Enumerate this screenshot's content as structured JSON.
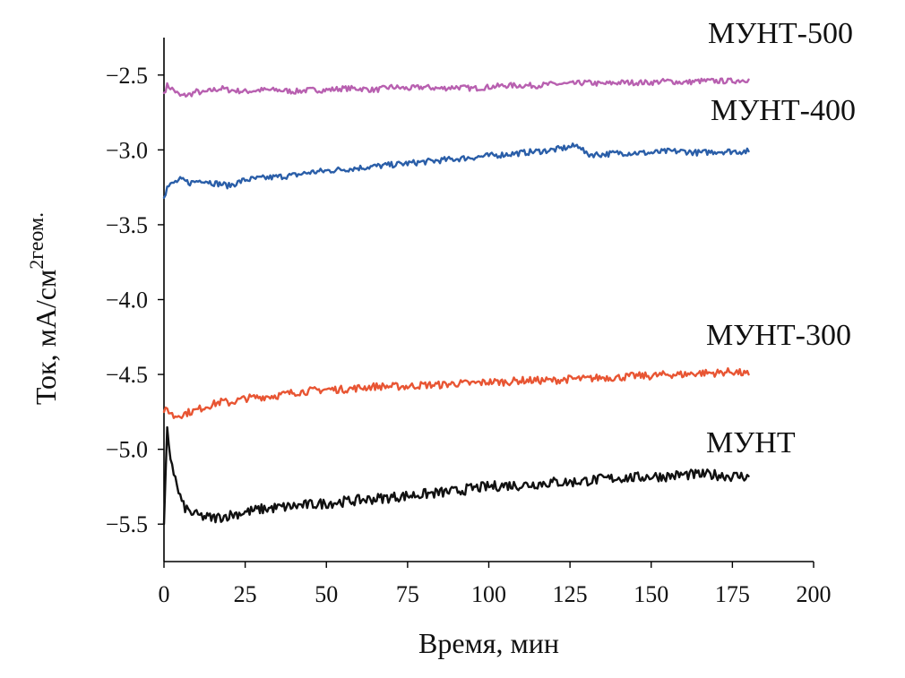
{
  "chart_data": {
    "type": "line",
    "xlabel": "Время, мин",
    "ylabel_main": "Ток, мА/см",
    "ylabel_sup": "2",
    "ylabel_sub": "геом.",
    "xlim": [
      0,
      200
    ],
    "ylim": [
      -5.75,
      -2.25
    ],
    "x_ticks": [
      0,
      25,
      50,
      75,
      100,
      125,
      150,
      175,
      200
    ],
    "y_ticks": [
      -2.5,
      -3.0,
      -3.5,
      -4.0,
      -4.5,
      -5.0,
      -5.5
    ],
    "grid": false,
    "series": [
      {
        "name": "МУНТ-500",
        "color": "#b860b0",
        "x": [
          0,
          1,
          3,
          5,
          8,
          10,
          12,
          15,
          18,
          20,
          25,
          30,
          35,
          40,
          45,
          50,
          55,
          60,
          65,
          70,
          75,
          80,
          85,
          90,
          95,
          100,
          105,
          110,
          115,
          120,
          125,
          130,
          135,
          140,
          145,
          150,
          155,
          160,
          165,
          170,
          175,
          180
        ],
        "values": [
          -2.62,
          -2.57,
          -2.6,
          -2.64,
          -2.63,
          -2.61,
          -2.62,
          -2.6,
          -2.59,
          -2.6,
          -2.61,
          -2.6,
          -2.6,
          -2.61,
          -2.6,
          -2.6,
          -2.59,
          -2.59,
          -2.6,
          -2.58,
          -2.59,
          -2.58,
          -2.59,
          -2.58,
          -2.59,
          -2.58,
          -2.57,
          -2.57,
          -2.57,
          -2.56,
          -2.56,
          -2.55,
          -2.56,
          -2.55,
          -2.55,
          -2.55,
          -2.54,
          -2.55,
          -2.54,
          -2.54,
          -2.54,
          -2.53
        ]
      },
      {
        "name": "МУНТ-400",
        "color": "#2a5ea8",
        "x": [
          0,
          1,
          3,
          5,
          8,
          10,
          12,
          15,
          18,
          20,
          25,
          30,
          35,
          40,
          45,
          50,
          55,
          60,
          65,
          70,
          75,
          80,
          85,
          90,
          95,
          100,
          105,
          110,
          115,
          120,
          125,
          128,
          130,
          135,
          140,
          145,
          150,
          155,
          160,
          165,
          170,
          175,
          180
        ],
        "values": [
          -3.32,
          -3.25,
          -3.22,
          -3.2,
          -3.22,
          -3.21,
          -3.2,
          -3.22,
          -3.23,
          -3.24,
          -3.2,
          -3.19,
          -3.18,
          -3.17,
          -3.15,
          -3.14,
          -3.13,
          -3.12,
          -3.11,
          -3.1,
          -3.09,
          -3.08,
          -3.07,
          -3.06,
          -3.05,
          -3.04,
          -3.03,
          -3.02,
          -3.01,
          -3.0,
          -2.98,
          -2.97,
          -3.03,
          -3.03,
          -3.02,
          -3.02,
          -3.02,
          -3.01,
          -3.01,
          -3.02,
          -3.01,
          -3.01,
          -3.01
        ]
      },
      {
        "name": "МУНТ-300",
        "color": "#e85533",
        "x": [
          0,
          1,
          3,
          5,
          8,
          10,
          12,
          15,
          18,
          20,
          25,
          30,
          35,
          40,
          45,
          50,
          55,
          60,
          65,
          70,
          75,
          80,
          85,
          90,
          95,
          100,
          105,
          110,
          115,
          120,
          125,
          130,
          135,
          140,
          145,
          150,
          155,
          160,
          165,
          170,
          175,
          180
        ],
        "values": [
          -4.75,
          -4.73,
          -4.78,
          -4.77,
          -4.75,
          -4.74,
          -4.72,
          -4.7,
          -4.68,
          -4.69,
          -4.66,
          -4.65,
          -4.64,
          -4.62,
          -4.61,
          -4.6,
          -4.6,
          -4.59,
          -4.58,
          -4.58,
          -4.58,
          -4.57,
          -4.57,
          -4.56,
          -4.56,
          -4.55,
          -4.55,
          -4.54,
          -4.54,
          -4.54,
          -4.53,
          -4.53,
          -4.52,
          -4.52,
          -4.51,
          -4.51,
          -4.5,
          -4.5,
          -4.49,
          -4.49,
          -4.48,
          -4.5
        ]
      },
      {
        "name": "МУНТ",
        "color": "#111111",
        "x": [
          0,
          1,
          2,
          3,
          4,
          5,
          6,
          8,
          10,
          12,
          15,
          18,
          20,
          25,
          30,
          35,
          40,
          45,
          50,
          55,
          60,
          65,
          70,
          75,
          80,
          85,
          90,
          95,
          100,
          105,
          110,
          115,
          120,
          125,
          130,
          135,
          140,
          145,
          150,
          155,
          160,
          165,
          170,
          175,
          180
        ],
        "values": [
          -5.5,
          -4.88,
          -5.05,
          -5.15,
          -5.25,
          -5.32,
          -5.38,
          -5.42,
          -5.44,
          -5.45,
          -5.46,
          -5.45,
          -5.44,
          -5.42,
          -5.4,
          -5.39,
          -5.38,
          -5.37,
          -5.36,
          -5.35,
          -5.34,
          -5.33,
          -5.32,
          -5.31,
          -5.3,
          -5.29,
          -5.28,
          -5.26,
          -5.25,
          -5.24,
          -5.24,
          -5.23,
          -5.22,
          -5.22,
          -5.21,
          -5.2,
          -5.19,
          -5.19,
          -5.18,
          -5.18,
          -5.17,
          -5.17,
          -5.17,
          -5.18,
          -5.18
        ]
      }
    ]
  }
}
